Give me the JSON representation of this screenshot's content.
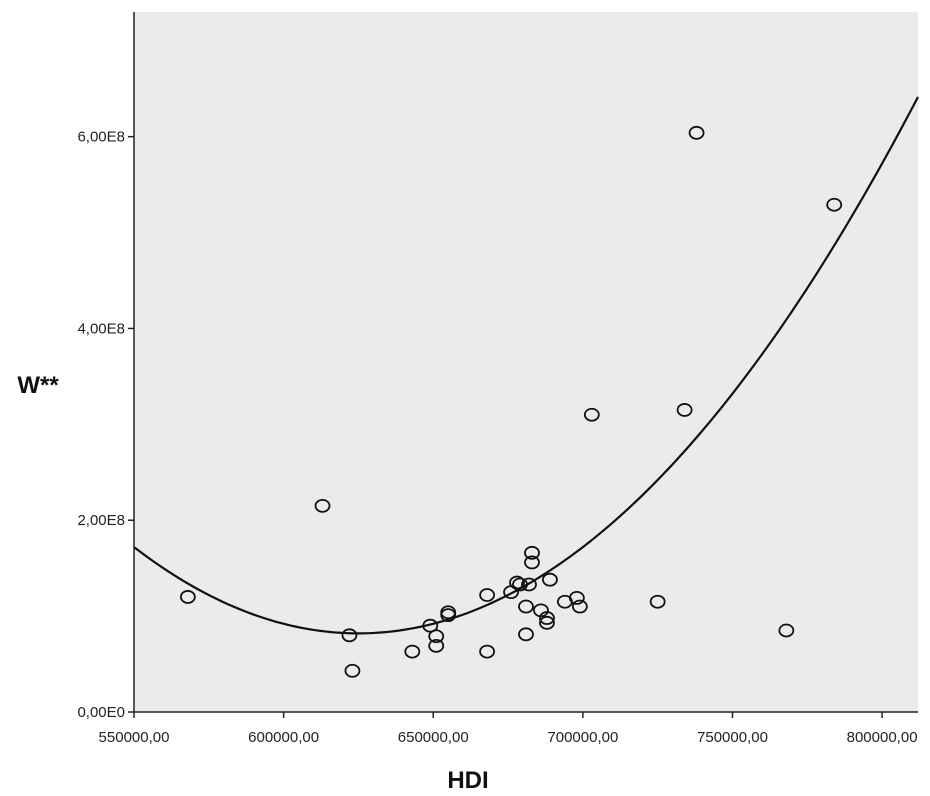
{
  "chart_data": {
    "type": "scatter",
    "xlabel": "HDI",
    "ylabel": "W**",
    "xlim": [
      550000,
      812000
    ],
    "ylim": [
      0,
      730000000
    ],
    "x_ticks": [
      {
        "value": 550000,
        "label": "550000,00"
      },
      {
        "value": 600000,
        "label": "600000,00"
      },
      {
        "value": 650000,
        "label": "650000,00"
      },
      {
        "value": 700000,
        "label": "700000,00"
      },
      {
        "value": 750000,
        "label": "750000,00"
      },
      {
        "value": 800000,
        "label": "800000,00"
      }
    ],
    "y_ticks": [
      {
        "value": 0,
        "label": "0,00E0"
      },
      {
        "value": 200000000,
        "label": "2,00E8"
      },
      {
        "value": 400000000,
        "label": "4,00E8"
      },
      {
        "value": 600000000,
        "label": "6,00E8"
      }
    ],
    "grid": false,
    "plot_background": "#ebebeb",
    "marker": "hollow-circle",
    "points": [
      {
        "x": 568000,
        "y": 120000000
      },
      {
        "x": 613000,
        "y": 215000000
      },
      {
        "x": 622000,
        "y": 80000000
      },
      {
        "x": 623000,
        "y": 43000000
      },
      {
        "x": 643000,
        "y": 63000000
      },
      {
        "x": 649000,
        "y": 90000000
      },
      {
        "x": 651000,
        "y": 79000000
      },
      {
        "x": 651000,
        "y": 69000000
      },
      {
        "x": 655000,
        "y": 101000000
      },
      {
        "x": 655000,
        "y": 104000000
      },
      {
        "x": 668000,
        "y": 122000000
      },
      {
        "x": 668000,
        "y": 63000000
      },
      {
        "x": 676000,
        "y": 125000000
      },
      {
        "x": 678000,
        "y": 135000000
      },
      {
        "x": 679000,
        "y": 133000000
      },
      {
        "x": 681000,
        "y": 110000000
      },
      {
        "x": 681000,
        "y": 81000000
      },
      {
        "x": 682000,
        "y": 133000000
      },
      {
        "x": 683000,
        "y": 166000000
      },
      {
        "x": 683000,
        "y": 156000000
      },
      {
        "x": 686000,
        "y": 106000000
      },
      {
        "x": 688000,
        "y": 98000000
      },
      {
        "x": 688000,
        "y": 93000000
      },
      {
        "x": 689000,
        "y": 138000000
      },
      {
        "x": 694000,
        "y": 115000000
      },
      {
        "x": 698000,
        "y": 119000000
      },
      {
        "x": 699000,
        "y": 110000000
      },
      {
        "x": 703000,
        "y": 310000000
      },
      {
        "x": 725000,
        "y": 115000000
      },
      {
        "x": 734000,
        "y": 315000000
      },
      {
        "x": 738000,
        "y": 604000000
      },
      {
        "x": 768000,
        "y": 85000000
      },
      {
        "x": 784000,
        "y": 529000000
      }
    ],
    "fit": {
      "type": "quadratic",
      "curve": [
        {
          "x": 550000,
          "y": 172000000
        },
        {
          "x": 625000,
          "y": 82000000
        },
        {
          "x": 700000,
          "y": 172000000
        },
        {
          "x": 812000,
          "y": 590000000
        }
      ]
    }
  },
  "colors": {
    "marker_stroke": "#111111",
    "fit_line": "#111111",
    "axis": "#222222"
  }
}
